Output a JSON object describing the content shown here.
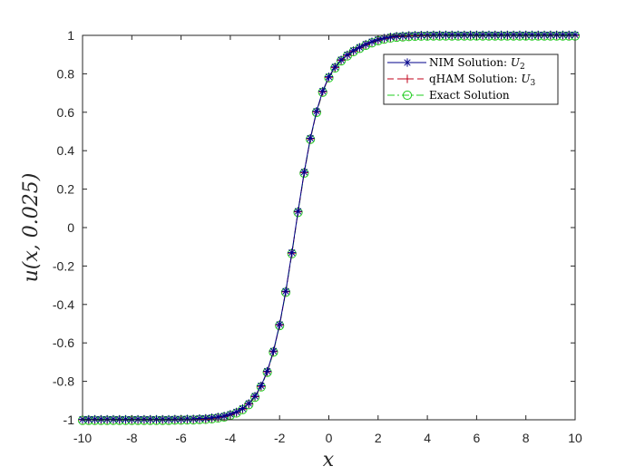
{
  "chart_data": {
    "type": "line",
    "xlabel": "x",
    "ylabel": "u(x, 0.025)",
    "xlim": [
      -10,
      10
    ],
    "ylim": [
      -1,
      1
    ],
    "x_ticks": [
      "-10",
      "-8",
      "-6",
      "-4",
      "-2",
      "0",
      "2",
      "4",
      "6",
      "8",
      "10"
    ],
    "y_ticks": [
      "1",
      "0.8",
      "0.6",
      "0.4",
      "0.2",
      "0",
      "-0.2",
      "-0.4",
      "-0.6",
      "-0.8",
      "-1"
    ],
    "x_tick_values": [
      -10,
      -8,
      -6,
      -4,
      -2,
      0,
      2,
      4,
      6,
      8,
      10
    ],
    "y_tick_values": [
      1,
      0.8,
      0.6,
      0.4,
      0.2,
      0,
      -0.2,
      -0.4,
      -0.6,
      -0.8,
      -1
    ],
    "grid": false,
    "box": true,
    "legend_position": "top-right",
    "x": [
      -10,
      -9.75,
      -9.5,
      -9.25,
      -9,
      -8.75,
      -8.5,
      -8.25,
      -8,
      -7.75,
      -7.5,
      -7.25,
      -7,
      -6.75,
      -6.5,
      -6.25,
      -6,
      -5.75,
      -5.5,
      -5.25,
      -5,
      -4.75,
      -4.5,
      -4.25,
      -4,
      -3.75,
      -3.5,
      -3.25,
      -3,
      -2.75,
      -2.5,
      -2.25,
      -2,
      -1.75,
      -1.5,
      -1.25,
      -1,
      -0.75,
      -0.5,
      -0.25,
      0,
      0.25,
      0.5,
      0.75,
      1,
      1.25,
      1.5,
      1.75,
      2,
      2.25,
      2.5,
      2.75,
      3,
      3.25,
      3.5,
      3.75,
      4,
      4.25,
      4.5,
      4.75,
      5,
      5.25,
      5.5,
      5.75,
      6,
      6.25,
      6.5,
      6.75,
      7,
      7.25,
      7.5,
      7.75,
      8,
      8.25,
      8.5,
      8.75,
      9,
      9.25,
      9.5,
      9.75,
      10
    ],
    "series": [
      {
        "name": "NIM Solution: U2",
        "label_main": "NIM Solution: ",
        "label_math": "U",
        "label_sub": "2",
        "color": "#00008b",
        "line_style": "solid",
        "marker": "asterisk",
        "values": [
          -1,
          -1,
          -1,
          -1,
          -1,
          -1,
          -1,
          -1,
          -1,
          -1,
          -1,
          -1,
          -1,
          -1,
          -1,
          -0.999,
          -0.999,
          -0.998,
          -0.998,
          -0.996,
          -0.995,
          -0.992,
          -0.988,
          -0.983,
          -0.974,
          -0.962,
          -0.944,
          -0.918,
          -0.88,
          -0.826,
          -0.75,
          -0.645,
          -0.507,
          -0.334,
          -0.133,
          0.082,
          0.286,
          0.462,
          0.602,
          0.707,
          0.782,
          0.833,
          0.87,
          0.896,
          0.918,
          0.935,
          0.951,
          0.964,
          0.975,
          0.983,
          0.989,
          0.993,
          0.995,
          0.997,
          0.998,
          0.999,
          0.999,
          1,
          1,
          1,
          1,
          1,
          1,
          1,
          1,
          1,
          1,
          1,
          1,
          1,
          1,
          1,
          1,
          1,
          1,
          1,
          1,
          1,
          1,
          1,
          1
        ],
        "shown_values": [
          -1,
          -1,
          -1,
          -1,
          -1,
          -1,
          -1,
          -1,
          -1,
          -1,
          -1,
          -1,
          -1,
          -1,
          -1,
          -1,
          -0.999,
          -0.999,
          -0.998,
          -0.997,
          -0.995,
          -0.992,
          -0.988,
          -0.982,
          -0.973,
          -0.96,
          -0.941,
          -0.912,
          -0.87,
          -0.81,
          -0.731,
          -0.625,
          -0.487,
          -0.316,
          -0.12,
          0.09,
          0.291,
          0.467,
          0.605,
          0.707,
          0.762,
          0.804,
          0.84,
          0.872,
          0.9,
          0.924,
          0.943,
          0.958,
          0.969,
          0.978,
          0.985,
          0.99,
          0.993,
          0.995,
          0.997,
          0.998,
          0.999,
          0.999,
          1,
          1,
          1,
          1,
          1,
          1,
          1,
          1,
          1,
          1,
          1,
          1,
          1,
          1,
          1,
          1,
          1,
          1,
          1,
          1,
          1,
          1,
          1
        ]
      },
      {
        "name": "qHAM Solution: U3",
        "label_main": "qHAM Solution: ",
        "label_math": "U",
        "label_sub": "3",
        "color": "#c0001a",
        "line_style": "dashed",
        "marker": "plus",
        "values": [
          -1,
          -1,
          -1,
          -1,
          -1,
          -1,
          -1,
          -1,
          -1,
          -1,
          -1,
          -1,
          -1,
          -1,
          -1,
          -0.999,
          -0.999,
          -0.998,
          -0.998,
          -0.996,
          -0.995,
          -0.992,
          -0.988,
          -0.983,
          -0.974,
          -0.962,
          -0.944,
          -0.918,
          -0.88,
          -0.826,
          -0.75,
          -0.645,
          -0.507,
          -0.334,
          -0.133,
          0.082,
          0.286,
          0.462,
          0.602,
          0.707,
          0.782,
          0.833,
          0.87,
          0.896,
          0.918,
          0.935,
          0.951,
          0.964,
          0.975,
          0.983,
          0.989,
          0.993,
          0.995,
          0.997,
          0.998,
          0.999,
          0.999,
          1,
          1,
          1,
          1,
          1,
          1,
          1,
          1,
          1,
          1,
          1,
          1,
          1,
          1,
          1,
          1,
          1,
          1,
          1,
          1,
          1,
          1,
          1,
          1
        ]
      },
      {
        "name": "Exact Solution",
        "label_main": "Exact Solution",
        "label_math": "",
        "label_sub": "",
        "color": "#22cc22",
        "line_style": "dash-dot",
        "marker": "circle",
        "values": [
          -1,
          -1,
          -1,
          -1,
          -1,
          -1,
          -1,
          -1,
          -1,
          -1,
          -1,
          -1,
          -1,
          -1,
          -1,
          -0.999,
          -0.999,
          -0.998,
          -0.998,
          -0.996,
          -0.995,
          -0.992,
          -0.988,
          -0.983,
          -0.974,
          -0.962,
          -0.944,
          -0.918,
          -0.88,
          -0.826,
          -0.75,
          -0.645,
          -0.507,
          -0.334,
          -0.133,
          0.082,
          0.286,
          0.462,
          0.602,
          0.707,
          0.782,
          0.833,
          0.87,
          0.896,
          0.918,
          0.935,
          0.951,
          0.964,
          0.975,
          0.983,
          0.989,
          0.993,
          0.995,
          0.997,
          0.998,
          0.999,
          0.999,
          1,
          1,
          1,
          1,
          1,
          1,
          1,
          1,
          1,
          1,
          1,
          1,
          1,
          1,
          1,
          1,
          1,
          1,
          1,
          1,
          1,
          1,
          1,
          1
        ]
      }
    ]
  },
  "colors": {
    "axes": "#262626",
    "background": "#ffffff",
    "figure_background": "#ffffff"
  }
}
